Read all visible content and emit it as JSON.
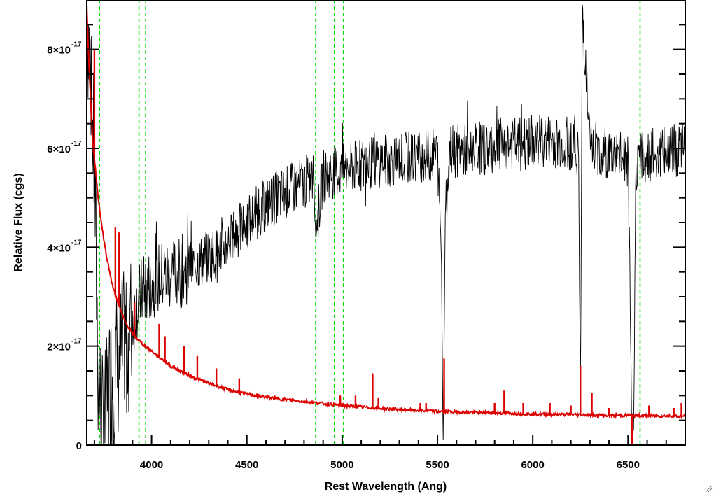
{
  "chart_data": {
    "type": "line",
    "title": "",
    "xlabel": "Rest Wavelength (Ang)",
    "ylabel": "Relative Flux (cgs)",
    "xlim": [
      3660,
      6800
    ],
    "ylim": [
      0,
      9e-17
    ],
    "x_ticks": [
      {
        "value": 4000,
        "label": "4000"
      },
      {
        "value": 4500,
        "label": "4500"
      },
      {
        "value": 5000,
        "label": "5000"
      },
      {
        "value": 5500,
        "label": "5500"
      },
      {
        "value": 6000,
        "label": "6000"
      },
      {
        "value": 6500,
        "label": "6500"
      }
    ],
    "y_ticks": [
      {
        "value": 0,
        "mantissa": "0",
        "exponent": ""
      },
      {
        "value": 2e-17,
        "mantissa": "2×10",
        "exponent": "-17"
      },
      {
        "value": 4e-17,
        "mantissa": "4×10",
        "exponent": "-17"
      },
      {
        "value": 6e-17,
        "mantissa": "6×10",
        "exponent": "-17"
      },
      {
        "value": 8e-17,
        "mantissa": "8×10",
        "exponent": "-17"
      }
    ],
    "reference_lines": {
      "color": "#00dd00",
      "style": "dashed",
      "x": [
        3727,
        3934,
        3969,
        4861,
        4959,
        5007,
        6563
      ]
    },
    "series": [
      {
        "color": "#000000",
        "x": [
          3660,
          3680,
          3700,
          3720,
          3740,
          3760,
          3780,
          3800,
          3820,
          3850,
          3880,
          3900,
          3920,
          3950,
          3980,
          4000,
          4050,
          4100,
          4150,
          4200,
          4250,
          4300,
          4350,
          4400,
          4450,
          4500,
          4550,
          4600,
          4650,
          4700,
          4750,
          4800,
          4850,
          4861,
          4900,
          4950,
          5000,
          5050,
          5100,
          5150,
          5200,
          5250,
          5300,
          5350,
          5400,
          5450,
          5500,
          5520,
          5530,
          5540,
          5560,
          5600,
          5650,
          5700,
          5750,
          5800,
          5850,
          5900,
          5950,
          6000,
          6050,
          6100,
          6150,
          6200,
          6240,
          6250,
          6260,
          6300,
          6350,
          6400,
          6450,
          6500,
          6520,
          6530,
          6540,
          6560,
          6600,
          6650,
          6700,
          6750,
          6800
        ],
        "y": [
          8.8e-17,
          7.5e-17,
          5.5e-17,
          1.5e-17,
          3e-18,
          5e-18,
          1.2e-17,
          1.5e-17,
          1.6e-17,
          1.9e-17,
          2.2e-17,
          2.5e-17,
          2.8e-17,
          3.1e-17,
          3.2e-17,
          3.3e-17,
          3.4e-17,
          3.45e-17,
          3.5e-17,
          3.6e-17,
          3.7e-17,
          3.8e-17,
          3.95e-17,
          4.1e-17,
          4.3e-17,
          4.5e-17,
          4.7e-17,
          4.85e-17,
          5e-17,
          5.1e-17,
          5.2e-17,
          5.3e-17,
          5.4e-17,
          4.3e-17,
          5.45e-17,
          5.5e-17,
          5.55e-17,
          5.6e-17,
          5.65e-17,
          5.7e-17,
          5.75e-17,
          5.75e-17,
          5.8e-17,
          5.8e-17,
          5.85e-17,
          5.85e-17,
          5.9e-17,
          4e-17,
          1e-18,
          4.5e-17,
          5.9e-17,
          5.95e-17,
          5.95e-17,
          6e-17,
          6e-17,
          6.05e-17,
          6.1e-17,
          6.1e-17,
          6.1e-17,
          6.15e-17,
          6.15e-17,
          6.15e-17,
          6.1e-17,
          6.1e-17,
          6e-17,
          7e-18,
          8.9e-17,
          6e-17,
          5.95e-17,
          5.9e-17,
          5.85e-17,
          5.7e-17,
          1e-18,
          3e-18,
          5.6e-17,
          5.8e-17,
          5.85e-17,
          5.9e-17,
          5.9e-17,
          5.95e-17,
          5.95e-17
        ]
      },
      {
        "color": "#dd0000",
        "x": [
          3660,
          3670,
          3680,
          3690,
          3700,
          3720,
          3740,
          3760,
          3780,
          3800,
          3830,
          3860,
          3900,
          3950,
          4000,
          4100,
          4200,
          4300,
          4400,
          4500,
          4600,
          4700,
          4800,
          4900,
          5000,
          5100,
          5200,
          5300,
          5400,
          5500,
          5600,
          5700,
          5800,
          5900,
          6000,
          6100,
          6200,
          6300,
          6400,
          6500,
          6600,
          6700,
          6800
        ],
        "y": [
          8.9e-17,
          7.8e-17,
          7e-17,
          6.2e-17,
          5.8e-17,
          5e-17,
          4.4e-17,
          3.9e-17,
          3.5e-17,
          3.15e-17,
          2.8e-17,
          2.5e-17,
          2.25e-17,
          2.05e-17,
          1.9e-17,
          1.6e-17,
          1.4e-17,
          1.25e-17,
          1.12e-17,
          1.03e-17,
          9.7e-18,
          9.2e-18,
          8.8e-18,
          8.4e-18,
          8e-18,
          7.7e-18,
          7.4e-18,
          7.2e-18,
          7e-18,
          6.8e-18,
          6.7e-18,
          6.6e-18,
          6.5e-18,
          6.4e-18,
          6.3e-18,
          6.2e-18,
          6.2e-18,
          6.1e-18,
          6e-18,
          6e-18,
          5.9e-18,
          5.9e-18,
          5.8e-18
        ]
      }
    ],
    "red_spikes": [
      {
        "x": 3700,
        "y": 8e-17
      },
      {
        "x": 3810,
        "y": 4.4e-17
      },
      {
        "x": 3830,
        "y": 4.3e-17
      },
      {
        "x": 3910,
        "y": 2.9e-17
      },
      {
        "x": 4040,
        "y": 2.45e-17
      },
      {
        "x": 4070,
        "y": 2.2e-17
      },
      {
        "x": 4170,
        "y": 2e-17
      },
      {
        "x": 4240,
        "y": 1.8e-17
      },
      {
        "x": 4340,
        "y": 1.55e-17
      },
      {
        "x": 4460,
        "y": 1.35e-17
      },
      {
        "x": 4990,
        "y": 1e-17
      },
      {
        "x": 5070,
        "y": 1e-17
      },
      {
        "x": 5160,
        "y": 1.45e-17
      },
      {
        "x": 5190,
        "y": 9.5e-18
      },
      {
        "x": 5410,
        "y": 8.5e-18
      },
      {
        "x": 5440,
        "y": 8.5e-18
      },
      {
        "x": 5535,
        "y": 1.75e-17
      },
      {
        "x": 5800,
        "y": 8.5e-18
      },
      {
        "x": 5850,
        "y": 1.1e-17
      },
      {
        "x": 5950,
        "y": 8.5e-18
      },
      {
        "x": 6090,
        "y": 8.5e-18
      },
      {
        "x": 6200,
        "y": 8e-18
      },
      {
        "x": 6250,
        "y": 1.6e-17
      },
      {
        "x": 6310,
        "y": 1.05e-17
      },
      {
        "x": 6400,
        "y": 7.5e-18
      },
      {
        "x": 6520,
        "y": 0.0
      },
      {
        "x": 6610,
        "y": 8e-18
      },
      {
        "x": 6740,
        "y": 7.5e-18
      },
      {
        "x": 6780,
        "y": 8.5e-18
      }
    ]
  }
}
